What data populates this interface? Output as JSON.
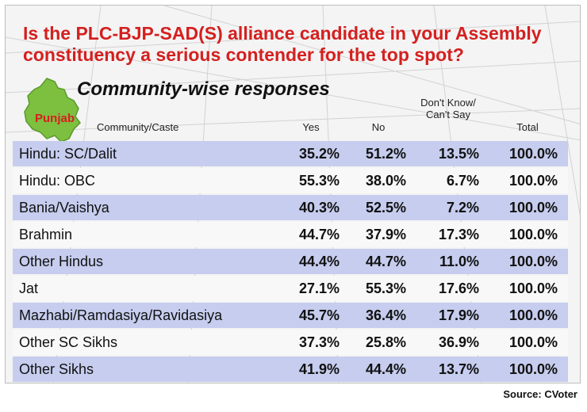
{
  "title": "Is the PLC-BJP-SAD(S) alliance candidate in your Assembly constituency a serious contender for the top spot?",
  "subtitle": "Community-wise responses",
  "map_label": "Punjab",
  "colors": {
    "title": "#d4201f",
    "map_fill": "#7dbf3f",
    "row_shaded": "#c6cdee",
    "row_plain": "#f8f8f8"
  },
  "source": "Source: CVoter",
  "chart_data": {
    "type": "table",
    "columns": [
      "Community/Caste",
      "Yes",
      "No",
      "Don't Know/ Can't Say",
      "Total"
    ],
    "rows": [
      {
        "community": "Hindu: SC/Dalit",
        "yes": "35.2%",
        "no": "51.2%",
        "dk": "13.5%",
        "total": "100.0%"
      },
      {
        "community": "Hindu: OBC",
        "yes": "55.3%",
        "no": "38.0%",
        "dk": "6.7%",
        "total": "100.0%"
      },
      {
        "community": "Bania/Vaishya",
        "yes": "40.3%",
        "no": "52.5%",
        "dk": "7.2%",
        "total": "100.0%"
      },
      {
        "community": "Brahmin",
        "yes": "44.7%",
        "no": "37.9%",
        "dk": "17.3%",
        "total": "100.0%"
      },
      {
        "community": "Other Hindus",
        "yes": "44.4%",
        "no": "44.7%",
        "dk": "11.0%",
        "total": "100.0%"
      },
      {
        "community": "Jat",
        "yes": "27.1%",
        "no": "55.3%",
        "dk": "17.6%",
        "total": "100.0%"
      },
      {
        "community": "Mazhabi/Ramdasiya/Ravidasiya",
        "yes": "45.7%",
        "no": "36.4%",
        "dk": "17.9%",
        "total": "100.0%"
      },
      {
        "community": "Other SC Sikhs",
        "yes": "37.3%",
        "no": "25.8%",
        "dk": "36.9%",
        "total": "100.0%"
      },
      {
        "community": "Other Sikhs",
        "yes": "41.9%",
        "no": "44.4%",
        "dk": "13.7%",
        "total": "100.0%"
      }
    ]
  }
}
